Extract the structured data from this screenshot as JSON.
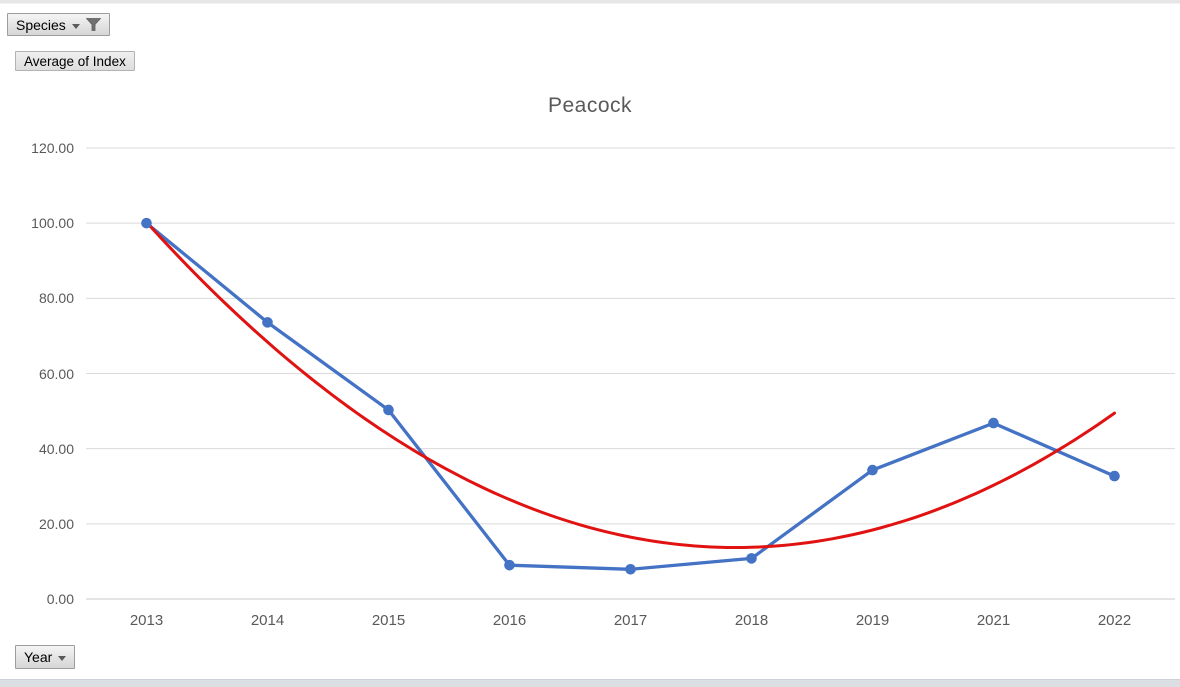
{
  "field_buttons": {
    "species": {
      "label": "Species"
    },
    "value": {
      "label": "Average of Index"
    },
    "axis": {
      "label": "Year"
    }
  },
  "chart_data": {
    "type": "line",
    "title": "Peacock",
    "categories": [
      "2013",
      "2014",
      "2015",
      "2016",
      "2017",
      "2018",
      "2019",
      "2021",
      "2022"
    ],
    "series": [
      {
        "name": "Average of Index",
        "color": "#4472c4",
        "marker": "circle",
        "values": [
          100.0,
          73.6,
          50.3,
          9.0,
          7.9,
          10.8,
          34.3,
          46.8,
          32.7
        ]
      }
    ],
    "trendline": {
      "name": "Polynomial trendline of Average of Index",
      "type": "polynomial",
      "order": 2,
      "color": "#e01212",
      "a": 3.65,
      "h": 4.87,
      "k": 13.7,
      "values_at_categories": [
        100.3,
        68.4,
        43.8,
        26.5,
        16.5,
        13.8,
        18.4,
        30.3,
        49.5
      ]
    },
    "y_ticks": [
      0,
      20,
      40,
      60,
      80,
      100,
      120
    ],
    "y_tick_decimals": 2,
    "ylim": [
      0,
      120
    ],
    "xlabel": "",
    "ylabel": "",
    "legend": "none",
    "grid": "horizontal",
    "gridline_color": "#dadada",
    "zero_line_color": "#c9c9c9",
    "label_color": "#595959"
  }
}
